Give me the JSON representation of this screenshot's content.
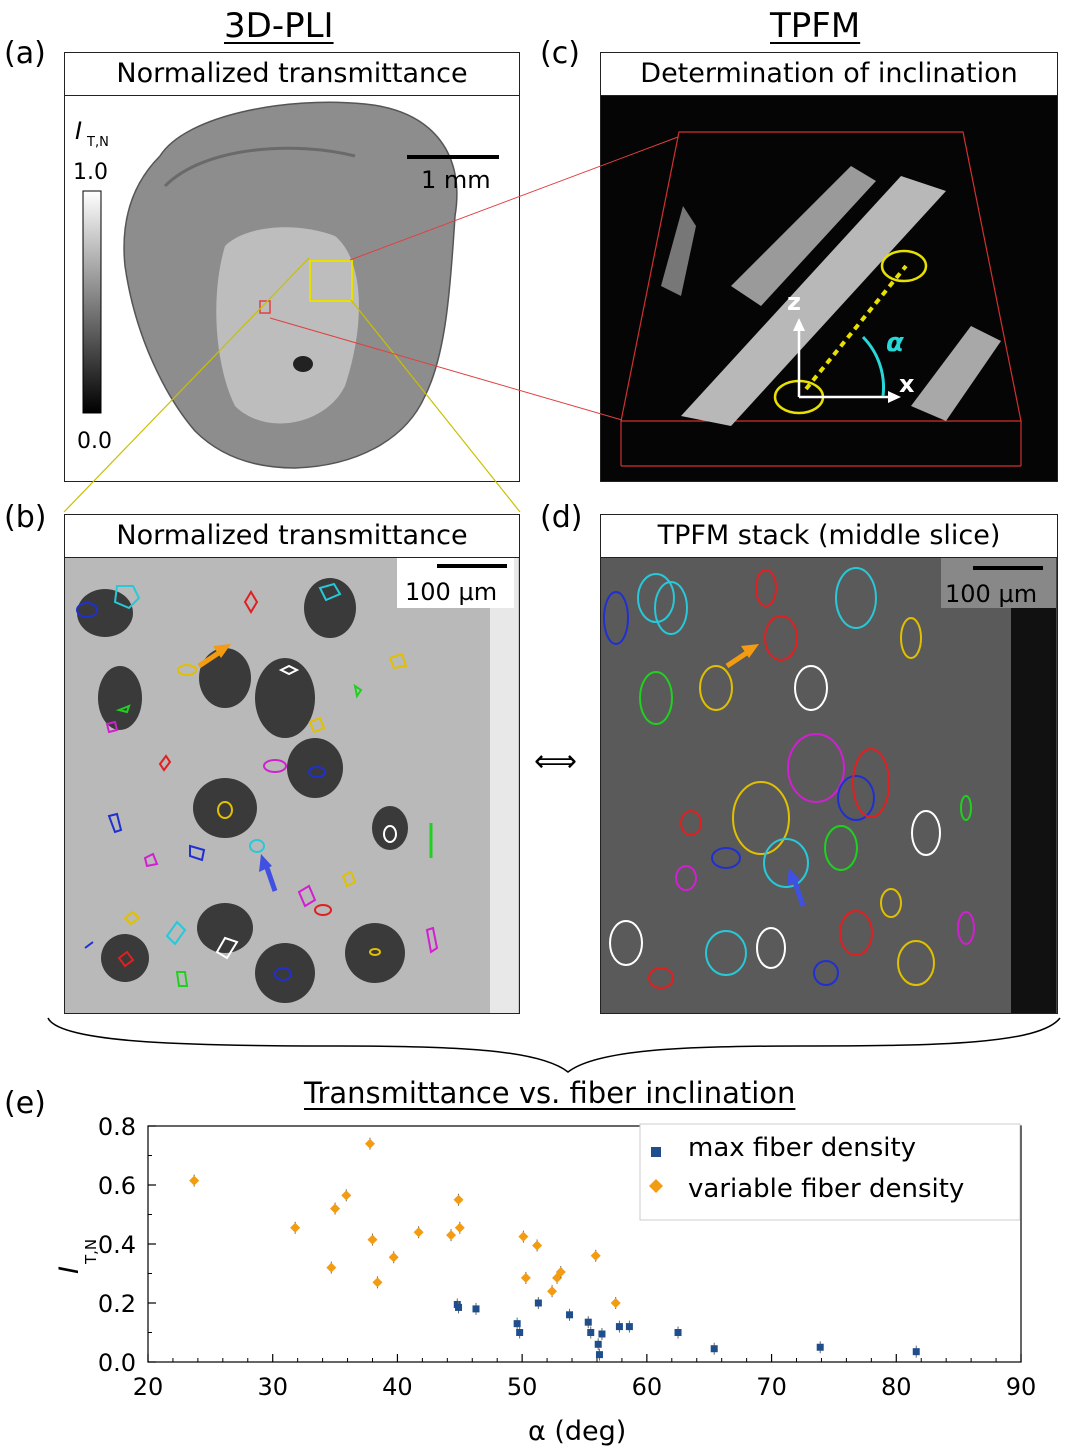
{
  "headers": {
    "left": "3D-PLI",
    "right": "TPFM"
  },
  "panel_labels": {
    "a": "(a)",
    "b": "(b)",
    "c": "(c)",
    "d": "(d)",
    "e": "(e)"
  },
  "panel_a": {
    "title": "Normalized transmittance",
    "colorbar_label_main": "I",
    "colorbar_label_sub": "T,N",
    "colorbar_max": "1.0",
    "colorbar_min": "0.0",
    "scalebar": "1 mm"
  },
  "panel_b": {
    "title": "Normalized transmittance",
    "scalebar": "100 µm"
  },
  "panel_c": {
    "title": "Determination of inclination",
    "axis_z": "z",
    "axis_x": "x",
    "angle": "α"
  },
  "panel_d": {
    "title": "TPFM stack (middle slice)",
    "scalebar": "100 µm"
  },
  "double_arrow": "⟺",
  "chart_data": {
    "type": "scatter",
    "title": "Transmittance vs. fiber inclination",
    "xlabel": "α (deg)",
    "ylabel_main": "I",
    "ylabel_sub": "T,N",
    "xlim": [
      20,
      90
    ],
    "ylim": [
      0,
      0.8
    ],
    "xticks": [
      "20",
      "30",
      "40",
      "50",
      "60",
      "70",
      "80",
      "90"
    ],
    "yticks": [
      "0.0",
      "0.2",
      "0.4",
      "0.6",
      "0.8"
    ],
    "legend_position": "top-right",
    "colors": {
      "max": "#1f4e8c",
      "variable": "#f39c12"
    },
    "series": [
      {
        "name": "max fiber density",
        "marker": "square",
        "points": [
          [
            44.8,
            0.195
          ],
          [
            44.9,
            0.185
          ],
          [
            46.3,
            0.18
          ],
          [
            49.6,
            0.13
          ],
          [
            49.8,
            0.1
          ],
          [
            51.3,
            0.2
          ],
          [
            53.8,
            0.16
          ],
          [
            55.3,
            0.135
          ],
          [
            55.5,
            0.1
          ],
          [
            56.1,
            0.06
          ],
          [
            56.2,
            0.025
          ],
          [
            56.4,
            0.095
          ],
          [
            57.8,
            0.12
          ],
          [
            58.6,
            0.12
          ],
          [
            62.5,
            0.1
          ],
          [
            65.4,
            0.045
          ],
          [
            73.9,
            0.05
          ],
          [
            81.6,
            0.035
          ]
        ]
      },
      {
        "name": "variable fiber density",
        "marker": "diamond",
        "points": [
          [
            23.7,
            0.615
          ],
          [
            31.8,
            0.455
          ],
          [
            34.7,
            0.32
          ],
          [
            35.0,
            0.52
          ],
          [
            35.9,
            0.565
          ],
          [
            37.8,
            0.74
          ],
          [
            38.0,
            0.415
          ],
          [
            38.4,
            0.27
          ],
          [
            39.7,
            0.355
          ],
          [
            41.7,
            0.44
          ],
          [
            44.3,
            0.43
          ],
          [
            44.9,
            0.55
          ],
          [
            45.0,
            0.455
          ],
          [
            50.1,
            0.425
          ],
          [
            50.3,
            0.285
          ],
          [
            51.2,
            0.395
          ],
          [
            52.4,
            0.24
          ],
          [
            52.8,
            0.285
          ],
          [
            53.1,
            0.305
          ],
          [
            55.9,
            0.36
          ],
          [
            57.5,
            0.2
          ]
        ]
      }
    ]
  }
}
